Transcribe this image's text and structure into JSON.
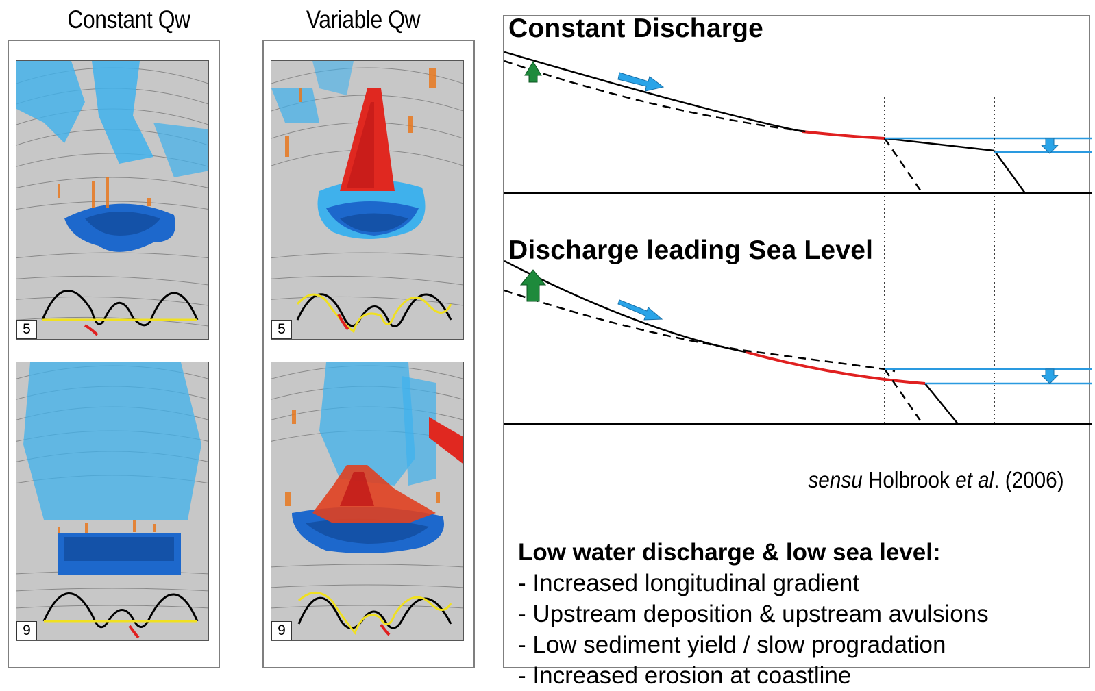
{
  "columns": [
    {
      "title": "Constant Qw",
      "panels": [
        {
          "number": "5"
        },
        {
          "number": "9"
        }
      ]
    },
    {
      "title": "Variable Qw",
      "panels": [
        {
          "number": "5"
        },
        {
          "number": "9"
        }
      ]
    }
  ],
  "diagram": {
    "section_top_title": "Constant Discharge",
    "section_bottom_title": "Discharge leading Sea Level",
    "citation": {
      "prefix": "sensu",
      "author": "Holbrook",
      "etal": "et al",
      "year": ". (2006)"
    },
    "summary": {
      "heading": "Low water discharge & low sea level:",
      "items": [
        "- Increased longitudinal gradient",
        "- Upstream deposition & upstream avulsions",
        "- Low sediment yield / slow progradation",
        "- Increased erosion at coastline"
      ]
    }
  },
  "colors": {
    "water_blue": "#2f9ee0",
    "deposition_red": "#e03020",
    "erosion_blue": "#2aa4e8",
    "arrow_green": "#1e8a3c",
    "sea_level_line": "#2a9ae0"
  }
}
